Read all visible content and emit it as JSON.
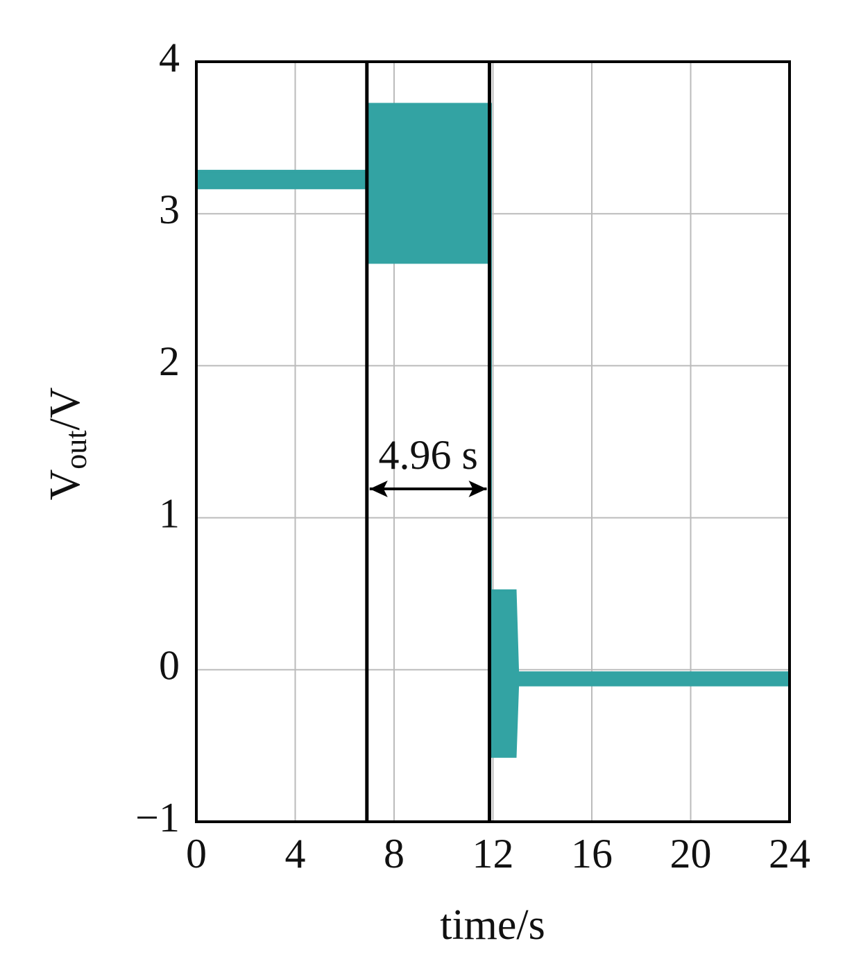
{
  "chart_data": {
    "type": "band",
    "xlabel": "time/s",
    "ylabel": {
      "main": "V",
      "sub": "out",
      "rest": "/V"
    },
    "xlim": [
      0,
      24
    ],
    "xticks": [
      0,
      4,
      8,
      12,
      16,
      20,
      24
    ],
    "ylim": [
      -1,
      4
    ],
    "yticks": [
      {
        "value": -1,
        "label": "−1"
      },
      0,
      1,
      2,
      3,
      4
    ],
    "grid": true,
    "series": [
      {
        "color": "#33a3a3",
        "x": [
          0,
          6.9,
          6.9,
          11.9,
          11.9,
          12.9,
          13.0,
          24
        ],
        "upper": [
          3.28,
          3.28,
          3.72,
          3.72,
          0.52,
          0.52,
          -0.02,
          -0.02
        ],
        "lower": [
          3.17,
          3.17,
          2.68,
          2.68,
          -0.57,
          -0.57,
          -0.1,
          -0.1
        ]
      }
    ],
    "vlines": [
      6.9,
      11.86
    ],
    "annotation": "4.96 s"
  }
}
